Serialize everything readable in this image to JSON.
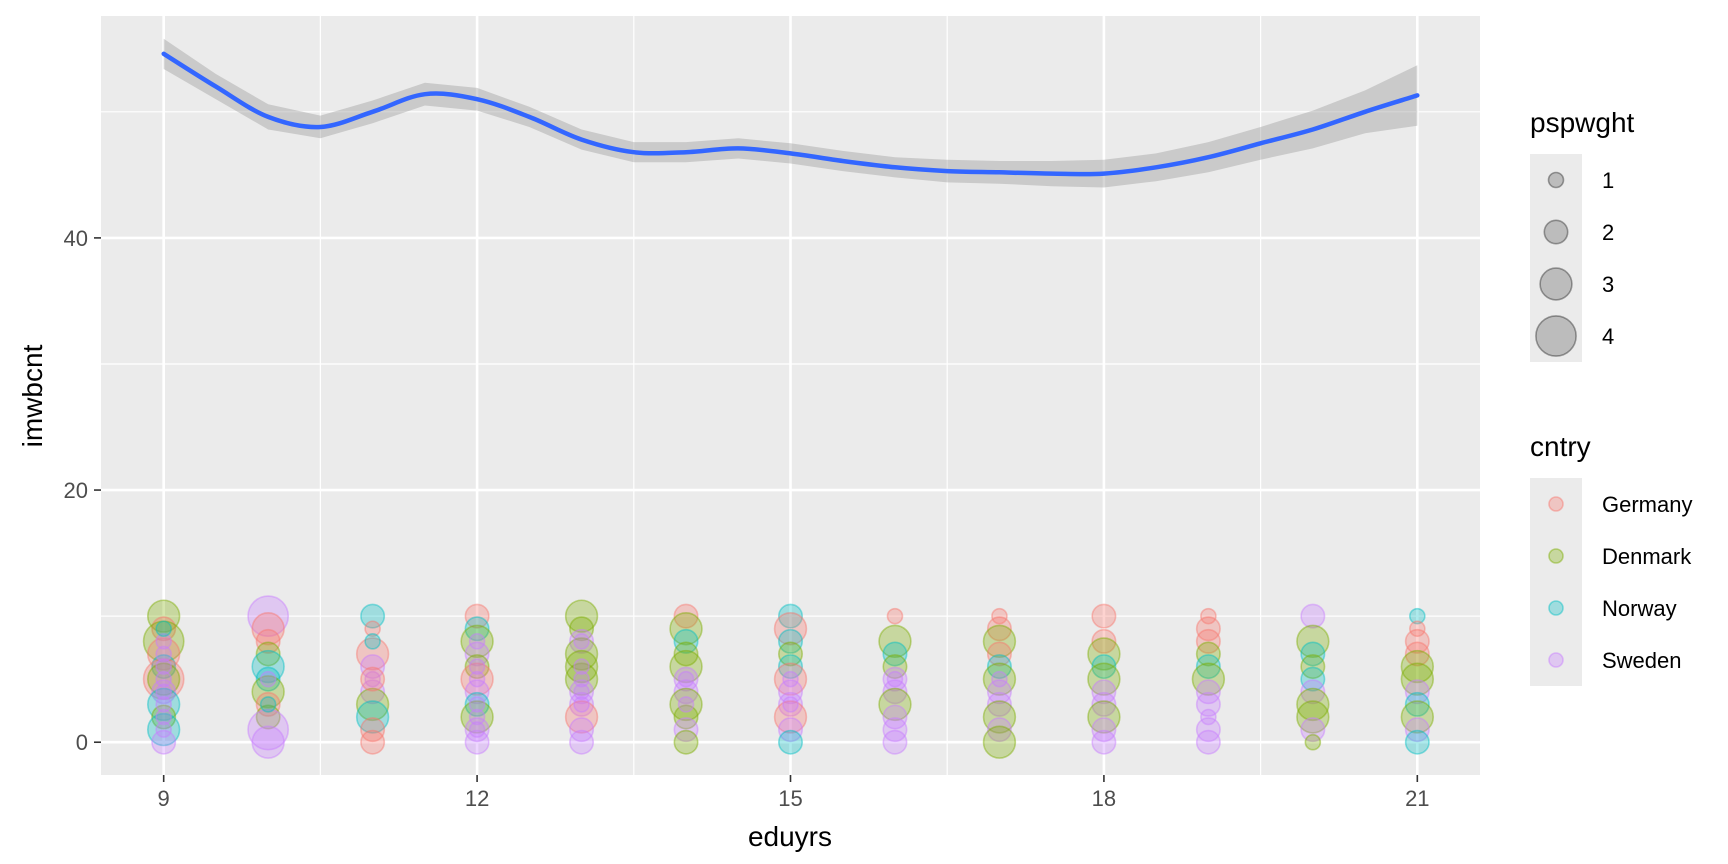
{
  "chart_data": {
    "type": "scatter",
    "title": "",
    "xlabel": "eduyrs",
    "ylabel": "imwbcnt",
    "xlim": [
      8.4,
      21.6
    ],
    "ylim": [
      -2.6,
      57.6
    ],
    "x_ticks": [
      9,
      12,
      15,
      18,
      21
    ],
    "y_ticks": [
      0,
      20,
      40
    ],
    "x_tick_labels": [
      "9",
      "12",
      "15",
      "18",
      "21"
    ],
    "y_tick_labels": [
      "0",
      "20",
      "40"
    ],
    "grid": true,
    "legend_position": "right",
    "size_legend": {
      "title": "pspwght",
      "items": [
        {
          "label": "1",
          "value": 1
        },
        {
          "label": "2",
          "value": 2
        },
        {
          "label": "3",
          "value": 3
        },
        {
          "label": "4",
          "value": 4
        }
      ]
    },
    "color_legend": {
      "title": "cntry",
      "items": [
        {
          "label": "Germany",
          "color": "#F8766D"
        },
        {
          "label": "Denmark",
          "color": "#7CAE00"
        },
        {
          "label": "Norway",
          "color": "#00BFC4"
        },
        {
          "label": "Sweden",
          "color": "#C77CFF"
        }
      ]
    },
    "smooth": {
      "color": "#3366FF",
      "band_color": "#999999",
      "points": [
        {
          "x": 9,
          "y": 54.6,
          "lo": 53.4,
          "hi": 55.8
        },
        {
          "x": 9.5,
          "y": 52.0,
          "lo": 51.0,
          "hi": 53.0
        },
        {
          "x": 10,
          "y": 49.6,
          "lo": 48.6,
          "hi": 50.6
        },
        {
          "x": 10.5,
          "y": 48.8,
          "lo": 47.9,
          "hi": 49.7
        },
        {
          "x": 11,
          "y": 50.0,
          "lo": 49.1,
          "hi": 50.9
        },
        {
          "x": 11.5,
          "y": 51.4,
          "lo": 50.5,
          "hi": 52.3
        },
        {
          "x": 12,
          "y": 51.0,
          "lo": 50.1,
          "hi": 51.9
        },
        {
          "x": 12.5,
          "y": 49.6,
          "lo": 48.8,
          "hi": 50.4
        },
        {
          "x": 13,
          "y": 47.8,
          "lo": 47.0,
          "hi": 48.6
        },
        {
          "x": 13.5,
          "y": 46.8,
          "lo": 46.0,
          "hi": 47.6
        },
        {
          "x": 14,
          "y": 46.8,
          "lo": 46.0,
          "hi": 47.6
        },
        {
          "x": 14.5,
          "y": 47.1,
          "lo": 46.3,
          "hi": 47.9
        },
        {
          "x": 15,
          "y": 46.7,
          "lo": 45.9,
          "hi": 47.5
        },
        {
          "x": 15.5,
          "y": 46.1,
          "lo": 45.3,
          "hi": 46.9
        },
        {
          "x": 16,
          "y": 45.6,
          "lo": 44.8,
          "hi": 46.4
        },
        {
          "x": 16.5,
          "y": 45.3,
          "lo": 44.4,
          "hi": 46.2
        },
        {
          "x": 17,
          "y": 45.2,
          "lo": 44.3,
          "hi": 46.1
        },
        {
          "x": 17.5,
          "y": 45.1,
          "lo": 44.1,
          "hi": 46.1
        },
        {
          "x": 18,
          "y": 45.1,
          "lo": 44.0,
          "hi": 46.2
        },
        {
          "x": 18.5,
          "y": 45.6,
          "lo": 44.5,
          "hi": 46.7
        },
        {
          "x": 19,
          "y": 46.4,
          "lo": 45.2,
          "hi": 47.6
        },
        {
          "x": 19.5,
          "y": 47.5,
          "lo": 46.2,
          "hi": 48.8
        },
        {
          "x": 20,
          "y": 48.6,
          "lo": 47.1,
          "hi": 50.1
        },
        {
          "x": 20.5,
          "y": 50.0,
          "lo": 48.3,
          "hi": 51.7
        },
        {
          "x": 21,
          "y": 51.3,
          "lo": 48.9,
          "hi": 53.7
        }
      ]
    },
    "points": [
      [
        9,
        10,
        3,
        "Denmark"
      ],
      [
        9,
        9,
        2,
        "Germany"
      ],
      [
        9,
        8,
        4,
        "Denmark"
      ],
      [
        9,
        7,
        3,
        "Germany"
      ],
      [
        9,
        6,
        2,
        "Norway"
      ],
      [
        9,
        5,
        4,
        "Germany"
      ],
      [
        9,
        5,
        3,
        "Denmark"
      ],
      [
        9,
        4,
        2,
        "Sweden"
      ],
      [
        9,
        3,
        3,
        "Norway"
      ],
      [
        9,
        2,
        2,
        "Denmark"
      ],
      [
        9,
        1,
        3,
        "Norway"
      ],
      [
        9,
        0,
        2,
        "Sweden"
      ],
      [
        9,
        8,
        1,
        "Sweden"
      ],
      [
        9,
        7,
        1,
        "Sweden"
      ],
      [
        9,
        6,
        1,
        "Sweden"
      ],
      [
        9,
        5,
        1,
        "Sweden"
      ],
      [
        9,
        4,
        1,
        "Sweden"
      ],
      [
        9,
        3,
        1,
        "Sweden"
      ],
      [
        9,
        2,
        1,
        "Sweden"
      ],
      [
        9,
        1,
        1,
        "Sweden"
      ],
      [
        9,
        9,
        1,
        "Norway"
      ],
      [
        10,
        10,
        4,
        "Sweden"
      ],
      [
        10,
        9,
        3,
        "Germany"
      ],
      [
        10,
        8,
        2,
        "Germany"
      ],
      [
        10,
        7,
        2,
        "Denmark"
      ],
      [
        10,
        6,
        3,
        "Norway"
      ],
      [
        10,
        5,
        2,
        "Norway"
      ],
      [
        10,
        4,
        3,
        "Denmark"
      ],
      [
        10,
        3,
        2,
        "Germany"
      ],
      [
        10,
        2,
        2,
        "Denmark"
      ],
      [
        10,
        1,
        4,
        "Sweden"
      ],
      [
        10,
        0,
        3,
        "Sweden"
      ],
      [
        10,
        5,
        1,
        "Sweden"
      ],
      [
        10,
        3,
        1,
        "Norway"
      ],
      [
        11,
        10,
        2,
        "Norway"
      ],
      [
        11,
        9,
        1,
        "Germany"
      ],
      [
        11,
        7,
        3,
        "Germany"
      ],
      [
        11,
        6,
        2,
        "Sweden"
      ],
      [
        11,
        5,
        1,
        "Sweden"
      ],
      [
        11,
        4,
        2,
        "Sweden"
      ],
      [
        11,
        3,
        3,
        "Denmark"
      ],
      [
        11,
        2,
        3,
        "Norway"
      ],
      [
        11,
        1,
        2,
        "Germany"
      ],
      [
        11,
        0,
        2,
        "Germany"
      ],
      [
        11,
        8,
        1,
        "Norway"
      ],
      [
        11,
        5,
        2,
        "Germany"
      ],
      [
        12,
        10,
        2,
        "Germany"
      ],
      [
        12,
        9,
        2,
        "Norway"
      ],
      [
        12,
        8,
        3,
        "Denmark"
      ],
      [
        12,
        7,
        2,
        "Sweden"
      ],
      [
        12,
        6,
        2,
        "Denmark"
      ],
      [
        12,
        5,
        3,
        "Germany"
      ],
      [
        12,
        4,
        2,
        "Sweden"
      ],
      [
        12,
        3,
        2,
        "Norway"
      ],
      [
        12,
        2,
        3,
        "Denmark"
      ],
      [
        12,
        1,
        2,
        "Sweden"
      ],
      [
        12,
        0,
        2,
        "Sweden"
      ],
      [
        12,
        8,
        1,
        "Sweden"
      ],
      [
        12,
        6,
        1,
        "Sweden"
      ],
      [
        12,
        5,
        1,
        "Sweden"
      ],
      [
        12,
        3,
        1,
        "Sweden"
      ],
      [
        12,
        2,
        1,
        "Sweden"
      ],
      [
        12,
        1,
        1,
        "Sweden"
      ],
      [
        13,
        10,
        3,
        "Denmark"
      ],
      [
        13,
        9,
        2,
        "Denmark"
      ],
      [
        13,
        8,
        2,
        "Sweden"
      ],
      [
        13,
        7,
        3,
        "Denmark"
      ],
      [
        13,
        6,
        3,
        "Denmark"
      ],
      [
        13,
        5,
        3,
        "Denmark"
      ],
      [
        13,
        4,
        2,
        "Sweden"
      ],
      [
        13,
        3,
        2,
        "Sweden"
      ],
      [
        13,
        2,
        3,
        "Germany"
      ],
      [
        13,
        1,
        2,
        "Sweden"
      ],
      [
        13,
        0,
        2,
        "Sweden"
      ],
      [
        13,
        8,
        1,
        "Sweden"
      ],
      [
        13,
        6,
        1,
        "Sweden"
      ],
      [
        13,
        5,
        1,
        "Sweden"
      ],
      [
        13,
        4,
        1,
        "Sweden"
      ],
      [
        13,
        3,
        1,
        "Sweden"
      ],
      [
        14,
        10,
        2,
        "Germany"
      ],
      [
        14,
        9,
        3,
        "Denmark"
      ],
      [
        14,
        8,
        2,
        "Norway"
      ],
      [
        14,
        7,
        2,
        "Denmark"
      ],
      [
        14,
        6,
        3,
        "Denmark"
      ],
      [
        14,
        5,
        2,
        "Sweden"
      ],
      [
        14,
        4,
        2,
        "Sweden"
      ],
      [
        14,
        3,
        3,
        "Denmark"
      ],
      [
        14,
        2,
        2,
        "Denmark"
      ],
      [
        14,
        1,
        2,
        "Sweden"
      ],
      [
        14,
        0,
        2,
        "Denmark"
      ],
      [
        14,
        5,
        1,
        "Sweden"
      ],
      [
        14,
        3,
        1,
        "Sweden"
      ],
      [
        15,
        10,
        2,
        "Norway"
      ],
      [
        15,
        9,
        3,
        "Germany"
      ],
      [
        15,
        8,
        2,
        "Norway"
      ],
      [
        15,
        7,
        2,
        "Denmark"
      ],
      [
        15,
        6,
        2,
        "Norway"
      ],
      [
        15,
        5,
        3,
        "Germany"
      ],
      [
        15,
        4,
        2,
        "Sweden"
      ],
      [
        15,
        3,
        2,
        "Sweden"
      ],
      [
        15,
        2,
        3,
        "Germany"
      ],
      [
        15,
        1,
        2,
        "Sweden"
      ],
      [
        15,
        0,
        2,
        "Norway"
      ],
      [
        15,
        5,
        1,
        "Sweden"
      ],
      [
        15,
        3,
        1,
        "Sweden"
      ],
      [
        16,
        10,
        1,
        "Germany"
      ],
      [
        16,
        8,
        3,
        "Denmark"
      ],
      [
        16,
        7,
        2,
        "Norway"
      ],
      [
        16,
        6,
        2,
        "Denmark"
      ],
      [
        16,
        5,
        2,
        "Sweden"
      ],
      [
        16,
        4,
        2,
        "Sweden"
      ],
      [
        16,
        3,
        3,
        "Denmark"
      ],
      [
        16,
        2,
        2,
        "Sweden"
      ],
      [
        16,
        1,
        2,
        "Sweden"
      ],
      [
        16,
        0,
        2,
        "Sweden"
      ],
      [
        16,
        5,
        1,
        "Sweden"
      ],
      [
        17,
        10,
        1,
        "Germany"
      ],
      [
        17,
        9,
        2,
        "Germany"
      ],
      [
        17,
        8,
        3,
        "Denmark"
      ],
      [
        17,
        7,
        2,
        "Germany"
      ],
      [
        17,
        6,
        2,
        "Norway"
      ],
      [
        17,
        5,
        3,
        "Denmark"
      ],
      [
        17,
        4,
        2,
        "Sweden"
      ],
      [
        17,
        3,
        2,
        "Sweden"
      ],
      [
        17,
        2,
        3,
        "Denmark"
      ],
      [
        17,
        1,
        2,
        "Sweden"
      ],
      [
        17,
        0,
        3,
        "Denmark"
      ],
      [
        17,
        5,
        1,
        "Sweden"
      ],
      [
        18,
        10,
        2,
        "Germany"
      ],
      [
        18,
        8,
        2,
        "Germany"
      ],
      [
        18,
        7,
        3,
        "Denmark"
      ],
      [
        18,
        6,
        2,
        "Norway"
      ],
      [
        18,
        5,
        3,
        "Denmark"
      ],
      [
        18,
        4,
        2,
        "Sweden"
      ],
      [
        18,
        3,
        2,
        "Sweden"
      ],
      [
        18,
        2,
        3,
        "Denmark"
      ],
      [
        18,
        1,
        2,
        "Sweden"
      ],
      [
        18,
        0,
        2,
        "Sweden"
      ],
      [
        19,
        10,
        1,
        "Germany"
      ],
      [
        19,
        9,
        2,
        "Germany"
      ],
      [
        19,
        8,
        2,
        "Germany"
      ],
      [
        19,
        7,
        2,
        "Denmark"
      ],
      [
        19,
        6,
        2,
        "Norway"
      ],
      [
        19,
        5,
        3,
        "Denmark"
      ],
      [
        19,
        4,
        2,
        "Sweden"
      ],
      [
        19,
        3,
        2,
        "Sweden"
      ],
      [
        19,
        2,
        1,
        "Sweden"
      ],
      [
        19,
        1,
        2,
        "Sweden"
      ],
      [
        19,
        0,
        2,
        "Sweden"
      ],
      [
        20,
        10,
        2,
        "Sweden"
      ],
      [
        20,
        8,
        3,
        "Denmark"
      ],
      [
        20,
        7,
        2,
        "Norway"
      ],
      [
        20,
        6,
        2,
        "Denmark"
      ],
      [
        20,
        5,
        2,
        "Norway"
      ],
      [
        20,
        4,
        2,
        "Sweden"
      ],
      [
        20,
        3,
        3,
        "Denmark"
      ],
      [
        20,
        2,
        3,
        "Denmark"
      ],
      [
        20,
        1,
        2,
        "Sweden"
      ],
      [
        20,
        0,
        1,
        "Denmark"
      ],
      [
        21,
        10,
        1,
        "Norway"
      ],
      [
        21,
        9,
        1,
        "Germany"
      ],
      [
        21,
        8,
        2,
        "Germany"
      ],
      [
        21,
        7,
        2,
        "Germany"
      ],
      [
        21,
        6,
        3,
        "Denmark"
      ],
      [
        21,
        5,
        3,
        "Denmark"
      ],
      [
        21,
        4,
        2,
        "Sweden"
      ],
      [
        21,
        3,
        2,
        "Norway"
      ],
      [
        21,
        2,
        3,
        "Denmark"
      ],
      [
        21,
        1,
        2,
        "Sweden"
      ],
      [
        21,
        0,
        2,
        "Norway"
      ]
    ]
  }
}
